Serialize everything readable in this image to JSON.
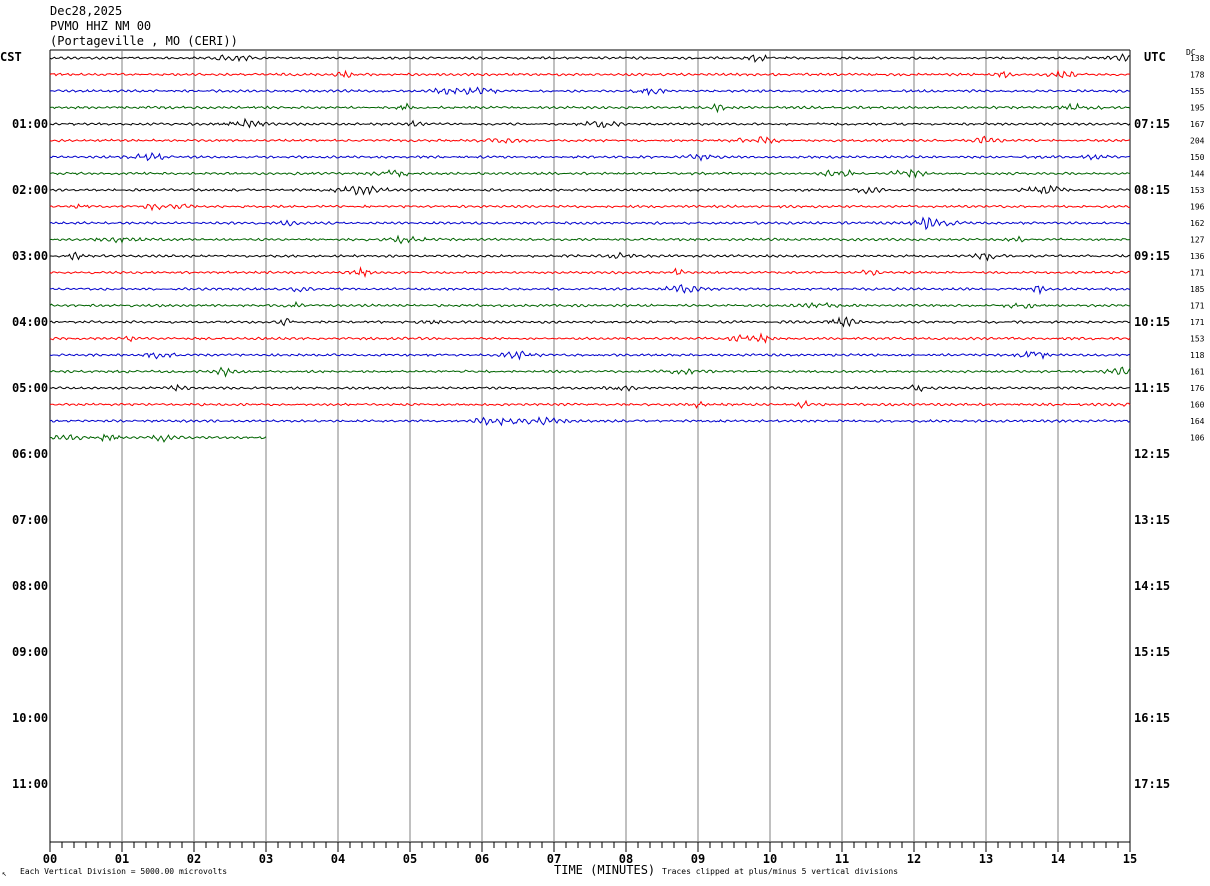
{
  "header": {
    "date": "Dec28,2025",
    "station": "PVMO HHZ NM 00",
    "location": "(Portageville , MO (CERI))"
  },
  "left_timezone": "CST",
  "right_timezone": "UTC",
  "dc_label": "DC",
  "footer": {
    "mark": "↖",
    "vertical_division": "Each Vertical Division = 5000.00 microvolts",
    "x_title": "TIME (MINUTES)",
    "clip_note": "Traces clipped at plus/minus 5 vertical divisions"
  },
  "colors": {
    "traces": [
      "#000000",
      "#ff0000",
      "#0000cc",
      "#006400"
    ],
    "grid": "#808080"
  },
  "chart_data": {
    "type": "line",
    "title": "PVMO HHZ NM 00",
    "xlabel": "TIME (MINUTES)",
    "x_ticks": [
      "00",
      "01",
      "02",
      "03",
      "04",
      "05",
      "06",
      "07",
      "08",
      "09",
      "10",
      "11",
      "12",
      "13",
      "14",
      "15"
    ],
    "xlim": [
      0,
      15
    ],
    "left_hour_labels": [
      "01:00",
      "02:00",
      "03:00",
      "04:00",
      "05:00",
      "06:00",
      "07:00",
      "08:00",
      "09:00",
      "10:00",
      "11:00"
    ],
    "right_hour_labels": [
      "07:15",
      "08:15",
      "09:15",
      "10:15",
      "11:15",
      "12:15",
      "13:15",
      "14:15",
      "15:15",
      "16:15",
      "17:15"
    ],
    "trace_minutes_per_line": 15,
    "trace_count": 24,
    "last_trace_end_minute": 3,
    "dc_offsets": [
      138,
      178,
      155,
      195,
      167,
      204,
      150,
      144,
      153,
      196,
      162,
      127,
      136,
      171,
      185,
      171,
      171,
      153,
      118,
      161,
      176,
      160,
      164,
      106
    ]
  }
}
